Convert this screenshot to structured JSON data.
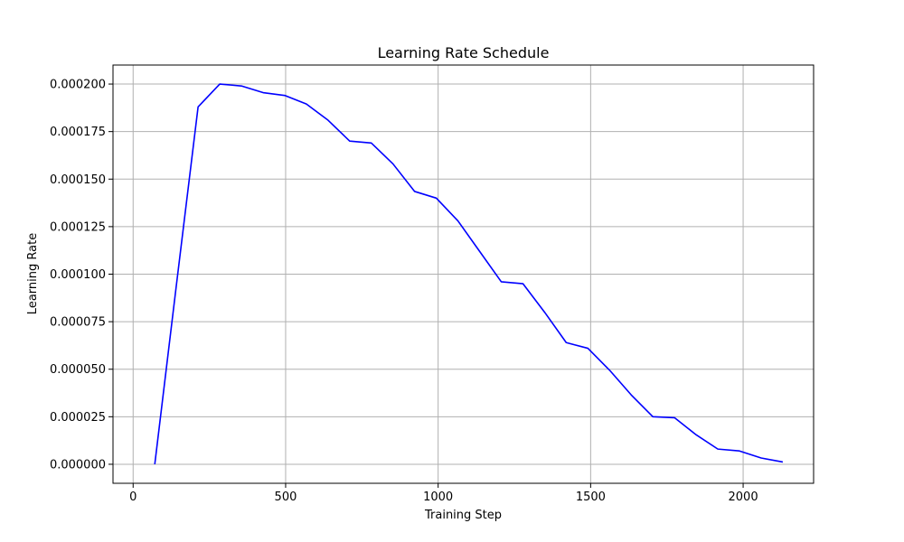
{
  "chart_data": {
    "type": "line",
    "title": "Learning Rate Schedule",
    "xlabel": "Training Step",
    "ylabel": "Learning Rate",
    "xlim": [
      -66,
      2231
    ],
    "ylim": [
      -1e-05,
      0.00021
    ],
    "x_ticks": [
      0,
      500,
      1000,
      1500,
      2000
    ],
    "x_tick_labels": [
      "0",
      "500",
      "1000",
      "1500",
      "2000"
    ],
    "y_ticks": [
      0,
      2.5e-05,
      5e-05,
      7.5e-05,
      0.0001,
      0.000125,
      0.00015,
      0.000175,
      0.0002
    ],
    "y_tick_labels": [
      "0.000000",
      "0.000025",
      "0.000050",
      "0.000075",
      "0.000100",
      "0.000125",
      "0.000150",
      "0.000175",
      "0.000200"
    ],
    "grid": true,
    "series": [
      {
        "color": "#0000ff",
        "x": [
          71,
          142,
          213,
          284,
          355,
          426,
          497,
          568,
          639,
          710,
          781,
          852,
          923,
          994,
          1065,
          1136,
          1207,
          1278,
          1349,
          1420,
          1491,
          1562,
          1633,
          1704,
          1775,
          1846,
          1917,
          1988,
          2059,
          2130
        ],
        "y": [
          0,
          9.45e-05,
          0.000188,
          0.0002,
          0.000199,
          0.0001955,
          0.000194,
          0.0001895,
          0.000181,
          0.00017,
          0.000169,
          0.000158,
          0.0001435,
          0.00014,
          0.000128,
          0.000112,
          9.6e-05,
          9.5e-05,
          8e-05,
          6.4e-05,
          6.1e-05,
          4.95e-05,
          3.65e-05,
          2.5e-05,
          2.45e-05,
          1.55e-05,
          8e-06,
          7e-06,
          3.3e-06,
          1.2e-06
        ]
      }
    ]
  }
}
